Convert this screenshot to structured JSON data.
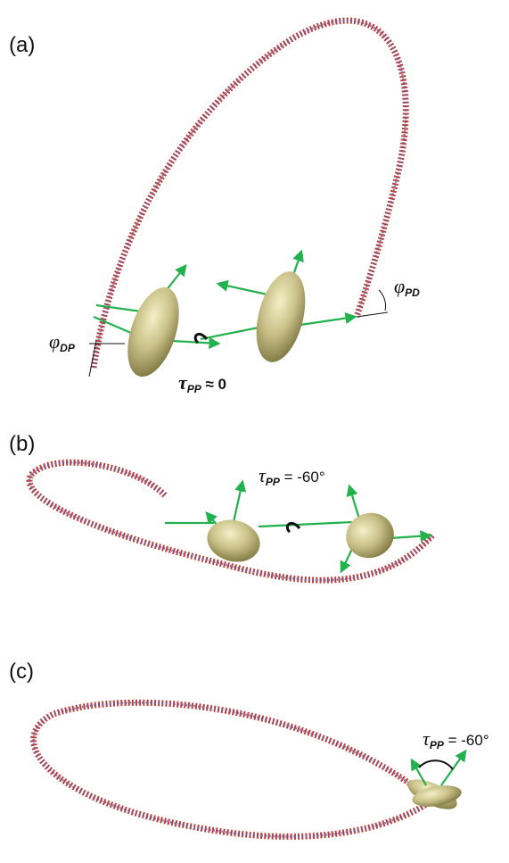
{
  "panels": [
    {
      "label": "(a)",
      "annotations": [
        {
          "symbol": "φ",
          "subscript": "DP"
        },
        {
          "symbol": "φ",
          "subscript": "PD"
        },
        {
          "symbol": "τ",
          "subscript": "PP",
          "relation": " ≈ 0"
        }
      ]
    },
    {
      "label": "(b)",
      "annotations": [
        {
          "symbol": "τ",
          "subscript": "PP",
          "relation": " = -60°"
        }
      ]
    },
    {
      "label": "(c)",
      "annotations": [
        {
          "symbol": "τ",
          "subscript": "PP",
          "relation": " = -60°"
        }
      ]
    }
  ]
}
